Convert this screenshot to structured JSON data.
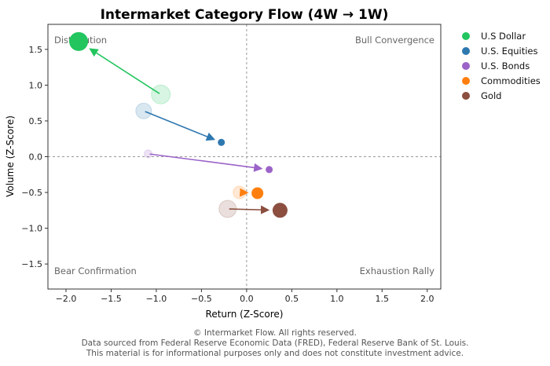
{
  "chart_data": {
    "type": "scatter",
    "title": "Intermarket Category Flow (4W → 1W)",
    "xlabel": "Return (Z-Score)",
    "ylabel": "Volume (Z-Score)",
    "xlim": [
      -2.2,
      2.15
    ],
    "ylim": [
      -1.85,
      1.85
    ],
    "xticks": [
      -2.0,
      -1.5,
      -1.0,
      -0.5,
      0.0,
      0.5,
      1.0,
      1.5,
      2.0
    ],
    "xtick_labels": [
      "−2.0",
      "−1.5",
      "−1.0",
      "−0.5",
      "0.0",
      "0.5",
      "1.0",
      "1.5",
      "2.0"
    ],
    "yticks": [
      1.5,
      1.0,
      0.5,
      0.0,
      -0.5,
      -1.0,
      -1.5
    ],
    "ytick_labels": [
      "1.5",
      "1.0",
      "0.5",
      "0.0",
      "−0.5",
      "−1.0",
      "−1.5"
    ],
    "grid": false,
    "legend_position": "outside-right",
    "quadrant_labels": {
      "top_left": "Distribution",
      "top_right": "Bull Convergence",
      "bottom_left": "Bear Confirmation",
      "bottom_right": "Exhaustion Rally"
    },
    "series": [
      {
        "name": "U.S Dollar",
        "color": "#22c55e",
        "x4w": -0.95,
        "y4w": 0.87,
        "x1w": -1.86,
        "y1w": 1.61,
        "size4w": 12,
        "size1w": 12
      },
      {
        "name": "U.S. Equities",
        "color": "#2e78b0",
        "x4w": -1.14,
        "y4w": 0.64,
        "x1w": -0.28,
        "y1w": 0.2,
        "size4w": 10,
        "size1w": 4.5
      },
      {
        "name": "U.S. Bonds",
        "color": "#9b63c8",
        "x4w": -1.09,
        "y4w": 0.04,
        "x1w": 0.25,
        "y1w": -0.18,
        "size4w": 5,
        "size1w": 4.5
      },
      {
        "name": "Commodities",
        "color": "#ff7f0e",
        "x4w": -0.08,
        "y4w": -0.5,
        "x1w": 0.12,
        "y1w": -0.51,
        "size4w": 8,
        "size1w": 7.5
      },
      {
        "name": "Gold",
        "color": "#8b4e3f",
        "x4w": -0.21,
        "y4w": -0.73,
        "x1w": 0.37,
        "y1w": -0.75,
        "size4w": 11,
        "size1w": 9.5
      }
    ]
  },
  "footer": {
    "line1": "© Intermarket Flow. All rights reserved.",
    "line2": "Data sourced from Federal Reserve Economic Data (FRED), Federal Reserve Bank of St. Louis.",
    "line3": "This material is for informational purposes only and does not constitute investment advice."
  }
}
